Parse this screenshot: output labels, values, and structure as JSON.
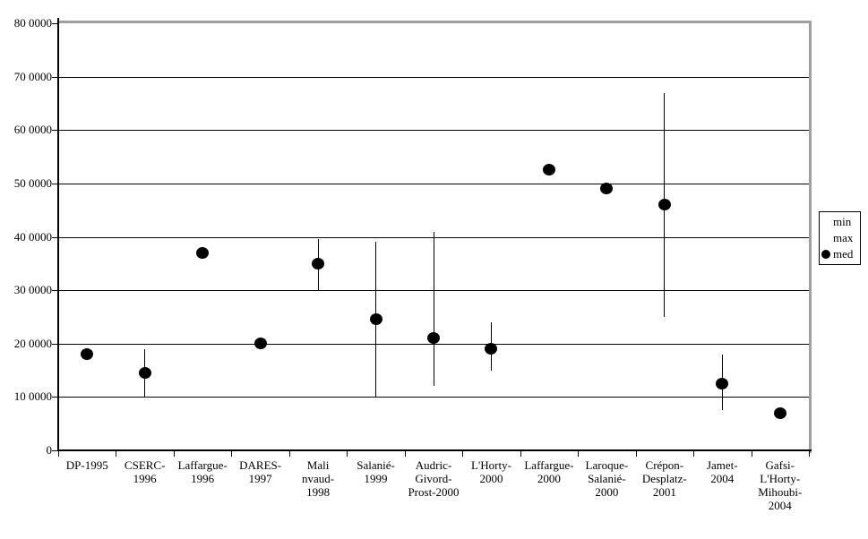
{
  "chart_data": {
    "type": "scatter",
    "title": "",
    "xlabel": "",
    "ylabel": "",
    "grid": true,
    "ylim": [
      0,
      800000
    ],
    "ytick_step": 100000,
    "yticks": [
      {
        "value": 800000,
        "label": "80 0000"
      },
      {
        "value": 700000,
        "label": "70 0000"
      },
      {
        "value": 600000,
        "label": "60 0000"
      },
      {
        "value": 500000,
        "label": "50 0000"
      },
      {
        "value": 400000,
        "label": "40 0000"
      },
      {
        "value": 300000,
        "label": "30 0000"
      },
      {
        "value": 200000,
        "label": "20 0000"
      },
      {
        "value": 100000,
        "label": "10 0000"
      },
      {
        "value": 0,
        "label": "0"
      }
    ],
    "categories": [
      "DP-1995",
      "CSERC-1996",
      "Laffargue-1996",
      "DARES-1997",
      "Malinvaud-1998",
      "Salanié-1999",
      "Audric-Givord-Prost-2000",
      "L'Horty-2000",
      "Laffargue-2000",
      "Laroque-Salanié-2000",
      "Crépon-Desplatz-2001",
      "Jamet-2004",
      "Gafsi-L'Horty-Mihoubi-2004"
    ],
    "category_label_lines": [
      [
        "DP-1995"
      ],
      [
        "CSERC-",
        "1996"
      ],
      [
        "Laffargue-",
        "1996"
      ],
      [
        "DARES-",
        "1997"
      ],
      [
        "Mali",
        "nvaud-",
        "1998"
      ],
      [
        "Salanié-",
        "1999"
      ],
      [
        "Audric-",
        "Givord-",
        "Prost-2000"
      ],
      [
        "L'Horty-",
        "2000"
      ],
      [
        "Laffargue-",
        "2000"
      ],
      [
        "Laroque-",
        "Salanié-",
        "2000"
      ],
      [
        "Crépon-",
        "Desplatz-",
        "2001"
      ],
      [
        "Jamet-",
        "2004"
      ],
      [
        "Gafsi-",
        "L'Horty-",
        "Mihoubi-",
        "2004"
      ]
    ],
    "series": [
      {
        "name": "med",
        "marker": "filled-circle",
        "values": [
          180000,
          145000,
          370000,
          200000,
          350000,
          245000,
          210000,
          190000,
          525000,
          490000,
          460000,
          125000,
          70000
        ]
      },
      {
        "name": "min",
        "marker": "range-bar-low",
        "values": [
          null,
          100000,
          null,
          null,
          300000,
          100000,
          120000,
          150000,
          null,
          null,
          250000,
          75000,
          null
        ]
      },
      {
        "name": "max",
        "marker": "range-bar-high",
        "values": [
          null,
          190000,
          null,
          null,
          395000,
          390000,
          410000,
          240000,
          null,
          null,
          670000,
          180000,
          null
        ]
      }
    ],
    "legend": {
      "position": "right",
      "entries": [
        {
          "label": "min",
          "marker": "none"
        },
        {
          "label": "max",
          "marker": "none"
        },
        {
          "label": "med",
          "marker": "filled-circle"
        }
      ]
    },
    "colors": {
      "marker": "#000000",
      "error_bar": "#000000",
      "gridline": "#000000",
      "axis": "#000000",
      "plot_border": "#a0a0a0",
      "background": "#ffffff"
    }
  }
}
